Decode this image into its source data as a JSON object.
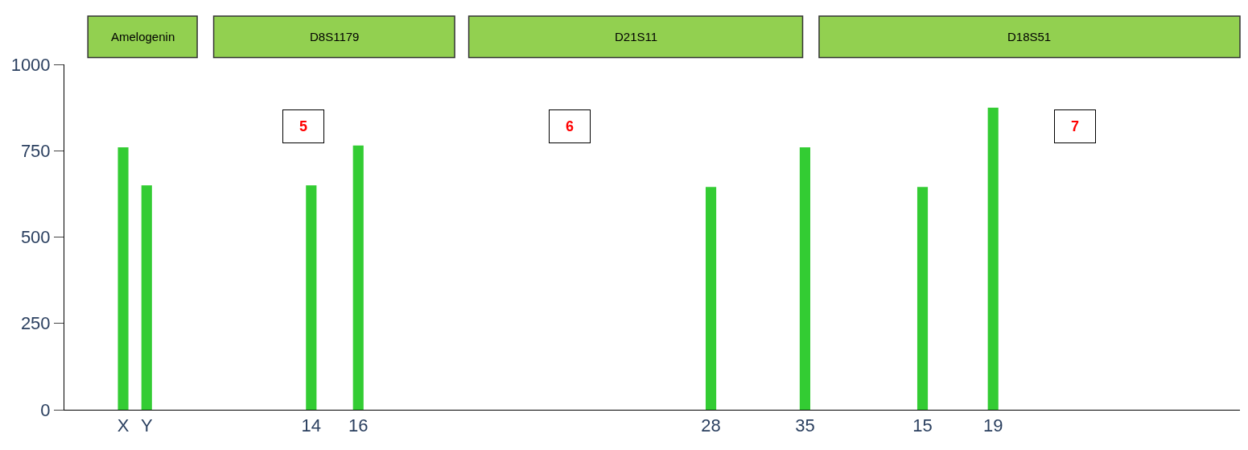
{
  "chart_data": {
    "type": "bar",
    "categories": [
      null,
      null,
      "X",
      "Y",
      null,
      null,
      null,
      null,
      null,
      null,
      "14",
      null,
      "16",
      null,
      null,
      null,
      null,
      null,
      null,
      null,
      null,
      null,
      null,
      null,
      null,
      null,
      null,
      "28",
      null,
      null,
      null,
      "35",
      null,
      null,
      null,
      null,
      "15",
      null,
      null,
      "19",
      null,
      null,
      null,
      null,
      null,
      null,
      null,
      null,
      null,
      null
    ],
    "values": [
      null,
      null,
      760,
      650,
      null,
      null,
      null,
      null,
      null,
      null,
      650,
      null,
      765,
      null,
      null,
      null,
      null,
      null,
      null,
      null,
      null,
      null,
      null,
      null,
      null,
      null,
      null,
      645,
      null,
      null,
      null,
      760,
      null,
      null,
      null,
      null,
      645,
      null,
      null,
      875,
      null,
      null,
      null,
      null,
      null,
      null,
      null,
      null,
      null,
      null
    ],
    "color": "#33cc33",
    "ylim": [
      0,
      1000
    ],
    "yticks": [
      0,
      250,
      500,
      750,
      1000
    ],
    "legend": false,
    "annotations": [
      "Amelogenin",
      "D8S1179",
      "D21S11",
      "D18S51",
      "5",
      "6",
      "7"
    ]
  }
}
